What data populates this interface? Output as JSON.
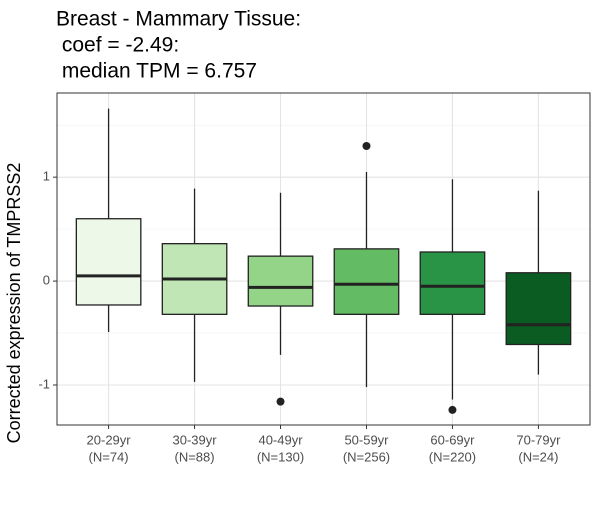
{
  "chart_data": {
    "type": "boxplot",
    "title_lines": [
      "Breast - Mammary Tissue:",
      " coef = -2.49:",
      " median TPM = 6.757"
    ],
    "y_label": "Corrected expression of TMPRSS2",
    "categories": [
      "20-29yr",
      "30-39yr",
      "40-49yr",
      "50-59yr",
      "60-69yr",
      "70-79yr"
    ],
    "category_counts": [
      "(N=74)",
      "(N=88)",
      "(N=130)",
      "(N=256)",
      "(N=220)",
      "(N=24)"
    ],
    "colors": [
      "#edf8e9",
      "#bfe6b4",
      "#94d488",
      "#63bb63",
      "#2a9446",
      "#0b5c22"
    ],
    "boxes": [
      {
        "whisker_low": -0.49,
        "q1": -0.23,
        "median": 0.05,
        "q3": 0.6,
        "whisker_high": 1.66,
        "outliers": []
      },
      {
        "whisker_low": -0.97,
        "q1": -0.32,
        "median": 0.02,
        "q3": 0.36,
        "whisker_high": 0.89,
        "outliers": []
      },
      {
        "whisker_low": -0.71,
        "q1": -0.24,
        "median": -0.06,
        "q3": 0.24,
        "whisker_high": 0.85,
        "outliers": [
          -1.16
        ]
      },
      {
        "whisker_low": -1.02,
        "q1": -0.32,
        "median": -0.03,
        "q3": 0.31,
        "whisker_high": 1.05,
        "outliers": [
          1.3
        ]
      },
      {
        "whisker_low": -1.14,
        "q1": -0.32,
        "median": -0.05,
        "q3": 0.28,
        "whisker_high": 0.98,
        "outliers": [
          -1.24
        ]
      },
      {
        "whisker_low": -0.9,
        "q1": -0.61,
        "median": -0.42,
        "q3": 0.08,
        "whisker_high": 0.87,
        "outliers": []
      }
    ],
    "ylim": [
      -1.385,
      1.81
    ],
    "yticks": [
      -1,
      0,
      1
    ],
    "minor_yticks": [
      -0.5,
      0.5,
      1.5
    ],
    "grid": true
  }
}
